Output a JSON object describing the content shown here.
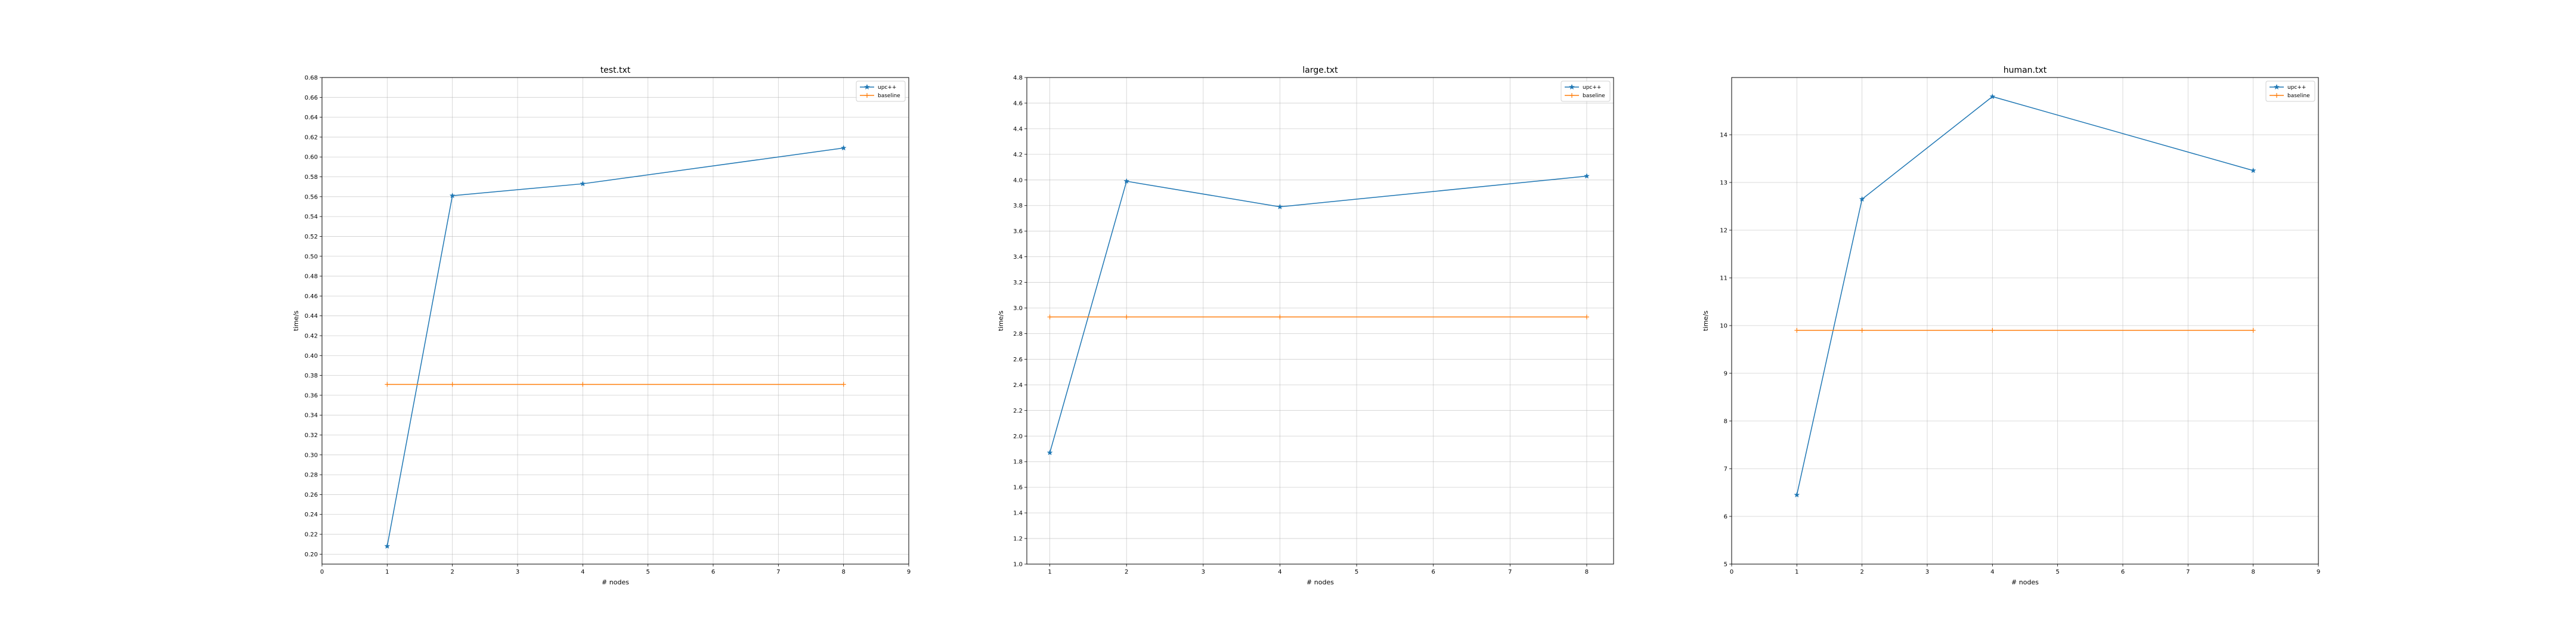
{
  "chart_data": [
    {
      "type": "line",
      "title": "test.txt",
      "xlabel": "# nodes",
      "ylabel": "time/s",
      "xlim": [
        0,
        9
      ],
      "ylim": [
        0.19,
        0.68
      ],
      "xticks": [
        0,
        1,
        2,
        3,
        4,
        5,
        6,
        7,
        8,
        9
      ],
      "yticks": [
        0.2,
        0.22,
        0.24,
        0.26,
        0.28,
        0.3,
        0.32,
        0.34,
        0.36,
        0.38,
        0.4,
        0.42,
        0.44,
        0.46,
        0.48,
        0.5,
        0.52,
        0.54,
        0.56,
        0.58,
        0.6,
        0.62,
        0.64,
        0.66,
        0.68
      ],
      "ytick_decimals": 2,
      "grid": true,
      "legend": "top-right",
      "x": [
        1,
        2,
        4,
        8
      ],
      "series": [
        {
          "name": "upc++",
          "values": [
            0.208,
            0.561,
            0.573,
            0.609
          ],
          "color": "#1f77b4",
          "marker": "*"
        },
        {
          "name": "baseline",
          "values": [
            0.371,
            0.371,
            0.371,
            0.371
          ],
          "color": "#ff7f0e",
          "marker": "+"
        }
      ]
    },
    {
      "type": "line",
      "title": "large.txt",
      "xlabel": "# nodes",
      "ylabel": "time/s",
      "xlim": [
        0.7,
        8.35
      ],
      "ylim": [
        1.0,
        4.8
      ],
      "xticks": [
        1,
        2,
        3,
        4,
        5,
        6,
        7,
        8
      ],
      "yticks": [
        1.0,
        1.2,
        1.4,
        1.6,
        1.8,
        2.0,
        2.2,
        2.4,
        2.6,
        2.8,
        3.0,
        3.2,
        3.4,
        3.6,
        3.8,
        4.0,
        4.2,
        4.4,
        4.6,
        4.8
      ],
      "ytick_decimals": 1,
      "grid": true,
      "legend": "top-right",
      "x": [
        1,
        2,
        4,
        8
      ],
      "series": [
        {
          "name": "upc++",
          "values": [
            1.87,
            3.99,
            3.79,
            4.03
          ],
          "color": "#1f77b4",
          "marker": "*"
        },
        {
          "name": "baseline",
          "values": [
            2.93,
            2.93,
            2.93,
            2.93
          ],
          "color": "#ff7f0e",
          "marker": "+"
        }
      ]
    },
    {
      "type": "line",
      "title": "human.txt",
      "xlabel": "# nodes",
      "ylabel": "time/s",
      "xlim": [
        0,
        9
      ],
      "ylim": [
        5,
        15.2
      ],
      "xticks": [
        0,
        1,
        2,
        3,
        4,
        5,
        6,
        7,
        8,
        9
      ],
      "yticks": [
        5,
        6,
        7,
        8,
        9,
        10,
        11,
        12,
        13,
        14
      ],
      "ytick_decimals": 0,
      "grid": true,
      "legend": "top-right",
      "x": [
        1,
        2,
        4,
        8
      ],
      "series": [
        {
          "name": "upc++",
          "values": [
            6.45,
            12.65,
            14.8,
            13.25
          ],
          "color": "#1f77b4",
          "marker": "*"
        },
        {
          "name": "baseline",
          "values": [
            9.9,
            9.9,
            9.9,
            9.9
          ],
          "color": "#ff7f0e",
          "marker": "+"
        }
      ]
    }
  ]
}
